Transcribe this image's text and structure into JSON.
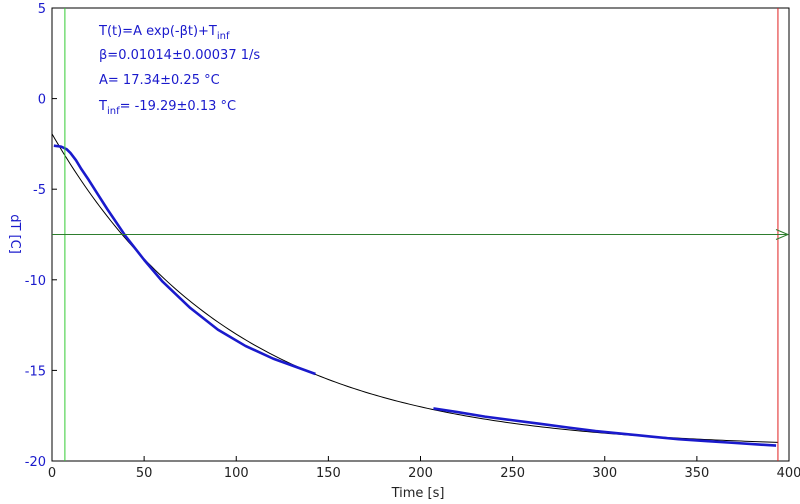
{
  "chart_data": {
    "type": "line",
    "xlabel": "Time [s]",
    "ylabel": "dT [C]",
    "xlim": [
      0,
      400
    ],
    "ylim": [
      -20,
      5
    ],
    "xticks": [
      0,
      50,
      100,
      150,
      200,
      250,
      300,
      350,
      400
    ],
    "yticks": [
      5,
      0,
      -5,
      -10,
      -15,
      -20
    ],
    "grid": false,
    "colors": {
      "measured": "#1a1acc",
      "fit": "#000000",
      "axis_text": "#1a1acc",
      "x_axis_text": "#222222",
      "green_marker": "#33cc33",
      "red_marker": "#e02020",
      "hline": "#2e7d2e"
    },
    "annotation": {
      "line1_main": "T(t)=A exp(-βt)+T",
      "line1_sub": "inf",
      "line2": "β=0.01014±0.00037 1/s",
      "line3": "A= 17.34±0.25 °C",
      "line4_main": "T",
      "line4_sub": "inf",
      "line4_rest": "= -19.29±0.13 °C"
    },
    "fit": {
      "A": 17.34,
      "beta": 0.01014,
      "T_inf": -19.29,
      "x_range": [
        0,
        394
      ]
    },
    "measured_segments": [
      {
        "x": [
          1,
          5,
          8,
          10,
          13,
          16,
          20,
          25,
          30,
          40,
          50,
          60,
          75,
          90,
          105,
          120,
          135,
          143
        ],
        "y": [
          -2.6,
          -2.65,
          -2.8,
          -3.0,
          -3.4,
          -3.9,
          -4.5,
          -5.3,
          -6.1,
          -7.6,
          -8.9,
          -10.1,
          -11.55,
          -12.75,
          -13.65,
          -14.35,
          -14.9,
          -15.2
        ]
      },
      {
        "x": [
          207,
          220,
          235,
          250,
          265,
          280,
          295,
          310,
          325,
          340,
          355,
          370,
          385,
          393
        ],
        "y": [
          -17.1,
          -17.3,
          -17.55,
          -17.75,
          -17.95,
          -18.15,
          -18.35,
          -18.5,
          -18.65,
          -18.8,
          -18.9,
          -19.0,
          -19.1,
          -19.15
        ]
      }
    ],
    "markers": {
      "green_vertical_x": 7,
      "red_vertical_x": 394,
      "horizontal_y": -7.5
    }
  }
}
